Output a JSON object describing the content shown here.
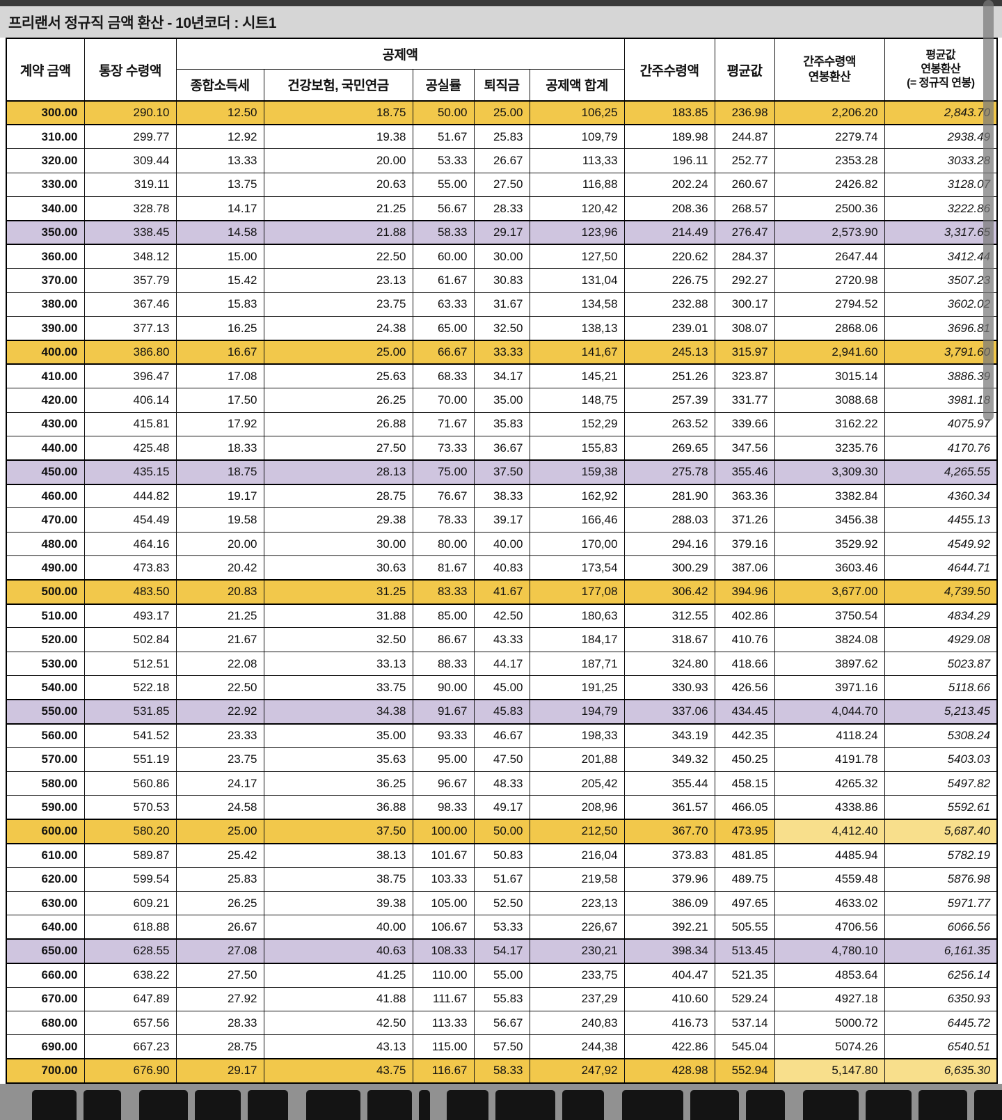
{
  "title": "프리랜서 정규직 금액 환산 - 10년코더 : 시트1",
  "colors": {
    "row_highlight_yellow": "#F2C84B",
    "row_highlight_yellow_light": "#F8DF8C",
    "row_highlight_purple": "#CFC5DF",
    "top_bar": "#3A3A3A",
    "title_bar_bg": "#D6D6D6",
    "caption_bg": "#919191"
  },
  "table": {
    "headers": {
      "contract": "계약 금액",
      "bank_received": "통장 수령액",
      "deductions_group": "공제액",
      "income_tax": "종합소득세",
      "health_pension": "건강보험, 국민연금",
      "vacancy_rate": "공실률",
      "severance": "퇴직금",
      "deductions_total": "공제액 합계",
      "deemed_received": "간주수령액",
      "average": "평균값",
      "deemed_annual_line1": "간주수령액",
      "deemed_annual_line2": "연봉환산",
      "average_annual_line1": "평균값",
      "average_annual_line2": "연봉환산",
      "average_annual_line3": "(= 정규직 연봉)"
    },
    "rows": [
      {
        "cells": [
          "300.00",
          "290.10",
          "12.50",
          "18.75",
          "50.00",
          "25.00",
          "106,25",
          "183.85",
          "236.98",
          "2,206.20",
          "2,843.70"
        ],
        "hl": "yellow"
      },
      {
        "cells": [
          "310.00",
          "299.77",
          "12.92",
          "19.38",
          "51.67",
          "25.83",
          "109,79",
          "189.98",
          "244.87",
          "2279.74",
          "2938.49"
        ],
        "hl": null
      },
      {
        "cells": [
          "320.00",
          "309.44",
          "13.33",
          "20.00",
          "53.33",
          "26.67",
          "113,33",
          "196.11",
          "252.77",
          "2353.28",
          "3033.28"
        ],
        "hl": null
      },
      {
        "cells": [
          "330.00",
          "319.11",
          "13.75",
          "20.63",
          "55.00",
          "27.50",
          "116,88",
          "202.24",
          "260.67",
          "2426.82",
          "3128.07"
        ],
        "hl": null
      },
      {
        "cells": [
          "340.00",
          "328.78",
          "14.17",
          "21.25",
          "56.67",
          "28.33",
          "120,42",
          "208.36",
          "268.57",
          "2500.36",
          "3222.86"
        ],
        "hl": null
      },
      {
        "cells": [
          "350.00",
          "338.45",
          "14.58",
          "21.88",
          "58.33",
          "29.17",
          "123,96",
          "214.49",
          "276.47",
          "2,573.90",
          "3,317.65"
        ],
        "hl": "purple"
      },
      {
        "cells": [
          "360.00",
          "348.12",
          "15.00",
          "22.50",
          "60.00",
          "30.00",
          "127,50",
          "220.62",
          "284.37",
          "2647.44",
          "3412.44"
        ],
        "hl": null
      },
      {
        "cells": [
          "370.00",
          "357.79",
          "15.42",
          "23.13",
          "61.67",
          "30.83",
          "131,04",
          "226.75",
          "292.27",
          "2720.98",
          "3507.23"
        ],
        "hl": null
      },
      {
        "cells": [
          "380.00",
          "367.46",
          "15.83",
          "23.75",
          "63.33",
          "31.67",
          "134,58",
          "232.88",
          "300.17",
          "2794.52",
          "3602.02"
        ],
        "hl": null
      },
      {
        "cells": [
          "390.00",
          "377.13",
          "16.25",
          "24.38",
          "65.00",
          "32.50",
          "138,13",
          "239.01",
          "308.07",
          "2868.06",
          "3696.81"
        ],
        "hl": null
      },
      {
        "cells": [
          "400.00",
          "386.80",
          "16.67",
          "25.00",
          "66.67",
          "33.33",
          "141,67",
          "245.13",
          "315.97",
          "2,941.60",
          "3,791.60"
        ],
        "hl": "yellow"
      },
      {
        "cells": [
          "410.00",
          "396.47",
          "17.08",
          "25.63",
          "68.33",
          "34.17",
          "145,21",
          "251.26",
          "323.87",
          "3015.14",
          "3886.39"
        ],
        "hl": null
      },
      {
        "cells": [
          "420.00",
          "406.14",
          "17.50",
          "26.25",
          "70.00",
          "35.00",
          "148,75",
          "257.39",
          "331.77",
          "3088.68",
          "3981.18"
        ],
        "hl": null
      },
      {
        "cells": [
          "430.00",
          "415.81",
          "17.92",
          "26.88",
          "71.67",
          "35.83",
          "152,29",
          "263.52",
          "339.66",
          "3162.22",
          "4075.97"
        ],
        "hl": null
      },
      {
        "cells": [
          "440.00",
          "425.48",
          "18.33",
          "27.50",
          "73.33",
          "36.67",
          "155,83",
          "269.65",
          "347.56",
          "3235.76",
          "4170.76"
        ],
        "hl": null
      },
      {
        "cells": [
          "450.00",
          "435.15",
          "18.75",
          "28.13",
          "75.00",
          "37.50",
          "159,38",
          "275.78",
          "355.46",
          "3,309.30",
          "4,265.55"
        ],
        "hl": "purple"
      },
      {
        "cells": [
          "460.00",
          "444.82",
          "19.17",
          "28.75",
          "76.67",
          "38.33",
          "162,92",
          "281.90",
          "363.36",
          "3382.84",
          "4360.34"
        ],
        "hl": null
      },
      {
        "cells": [
          "470.00",
          "454.49",
          "19.58",
          "29.38",
          "78.33",
          "39.17",
          "166,46",
          "288.03",
          "371.26",
          "3456.38",
          "4455.13"
        ],
        "hl": null
      },
      {
        "cells": [
          "480.00",
          "464.16",
          "20.00",
          "30.00",
          "80.00",
          "40.00",
          "170,00",
          "294.16",
          "379.16",
          "3529.92",
          "4549.92"
        ],
        "hl": null
      },
      {
        "cells": [
          "490.00",
          "473.83",
          "20.42",
          "30.63",
          "81.67",
          "40.83",
          "173,54",
          "300.29",
          "387.06",
          "3603.46",
          "4644.71"
        ],
        "hl": null
      },
      {
        "cells": [
          "500.00",
          "483.50",
          "20.83",
          "31.25",
          "83.33",
          "41.67",
          "177,08",
          "306.42",
          "394.96",
          "3,677.00",
          "4,739.50"
        ],
        "hl": "yellow"
      },
      {
        "cells": [
          "510.00",
          "493.17",
          "21.25",
          "31.88",
          "85.00",
          "42.50",
          "180,63",
          "312.55",
          "402.86",
          "3750.54",
          "4834.29"
        ],
        "hl": null
      },
      {
        "cells": [
          "520.00",
          "502.84",
          "21.67",
          "32.50",
          "86.67",
          "43.33",
          "184,17",
          "318.67",
          "410.76",
          "3824.08",
          "4929.08"
        ],
        "hl": null
      },
      {
        "cells": [
          "530.00",
          "512.51",
          "22.08",
          "33.13",
          "88.33",
          "44.17",
          "187,71",
          "324.80",
          "418.66",
          "3897.62",
          "5023.87"
        ],
        "hl": null
      },
      {
        "cells": [
          "540.00",
          "522.18",
          "22.50",
          "33.75",
          "90.00",
          "45.00",
          "191,25",
          "330.93",
          "426.56",
          "3971.16",
          "5118.66"
        ],
        "hl": null
      },
      {
        "cells": [
          "550.00",
          "531.85",
          "22.92",
          "34.38",
          "91.67",
          "45.83",
          "194,79",
          "337.06",
          "434.45",
          "4,044.70",
          "5,213.45"
        ],
        "hl": "purple"
      },
      {
        "cells": [
          "560.00",
          "541.52",
          "23.33",
          "35.00",
          "93.33",
          "46.67",
          "198,33",
          "343.19",
          "442.35",
          "4118.24",
          "5308.24"
        ],
        "hl": null
      },
      {
        "cells": [
          "570.00",
          "551.19",
          "23.75",
          "35.63",
          "95.00",
          "47.50",
          "201,88",
          "349.32",
          "450.25",
          "4191.78",
          "5403.03"
        ],
        "hl": null
      },
      {
        "cells": [
          "580.00",
          "560.86",
          "24.17",
          "36.25",
          "96.67",
          "48.33",
          "205,42",
          "355.44",
          "458.15",
          "4265.32",
          "5497.82"
        ],
        "hl": null
      },
      {
        "cells": [
          "590.00",
          "570.53",
          "24.58",
          "36.88",
          "98.33",
          "49.17",
          "208,96",
          "361.57",
          "466.05",
          "4338.86",
          "5592.61"
        ],
        "hl": null
      },
      {
        "cells": [
          "600.00",
          "580.20",
          "25.00",
          "37.50",
          "100.00",
          "50.00",
          "212,50",
          "367.70",
          "473.95",
          "4,412.40",
          "5,687.40"
        ],
        "hl": "yellow",
        "tailLight": true
      },
      {
        "cells": [
          "610.00",
          "589.87",
          "25.42",
          "38.13",
          "101.67",
          "50.83",
          "216,04",
          "373.83",
          "481.85",
          "4485.94",
          "5782.19"
        ],
        "hl": null
      },
      {
        "cells": [
          "620.00",
          "599.54",
          "25.83",
          "38.75",
          "103.33",
          "51.67",
          "219,58",
          "379.96",
          "489.75",
          "4559.48",
          "5876.98"
        ],
        "hl": null
      },
      {
        "cells": [
          "630.00",
          "609.21",
          "26.25",
          "39.38",
          "105.00",
          "52.50",
          "223,13",
          "386.09",
          "497.65",
          "4633.02",
          "5971.77"
        ],
        "hl": null
      },
      {
        "cells": [
          "640.00",
          "618.88",
          "26.67",
          "40.00",
          "106.67",
          "53.33",
          "226,67",
          "392.21",
          "505.55",
          "4706.56",
          "6066.56"
        ],
        "hl": null
      },
      {
        "cells": [
          "650.00",
          "628.55",
          "27.08",
          "40.63",
          "108.33",
          "54.17",
          "230,21",
          "398.34",
          "513.45",
          "4,780.10",
          "6,161.35"
        ],
        "hl": "purple"
      },
      {
        "cells": [
          "660.00",
          "638.22",
          "27.50",
          "41.25",
          "110.00",
          "55.00",
          "233,75",
          "404.47",
          "521.35",
          "4853.64",
          "6256.14"
        ],
        "hl": null
      },
      {
        "cells": [
          "670.00",
          "647.89",
          "27.92",
          "41.88",
          "111.67",
          "55.83",
          "237,29",
          "410.60",
          "529.24",
          "4927.18",
          "6350.93"
        ],
        "hl": null
      },
      {
        "cells": [
          "680.00",
          "657.56",
          "28.33",
          "42.50",
          "113.33",
          "56.67",
          "240,83",
          "416.73",
          "537.14",
          "5000.72",
          "6445.72"
        ],
        "hl": null
      },
      {
        "cells": [
          "690.00",
          "667.23",
          "28.75",
          "43.13",
          "115.00",
          "57.50",
          "244,38",
          "422.86",
          "545.04",
          "5074.26",
          "6540.51"
        ],
        "hl": null
      },
      {
        "cells": [
          "700.00",
          "676.90",
          "29.17",
          "43.75",
          "116.67",
          "58.33",
          "247,92",
          "428.98",
          "552.94",
          "5,147.80",
          "6,635.30"
        ],
        "hl": "yellow",
        "tailLight": true
      }
    ]
  }
}
